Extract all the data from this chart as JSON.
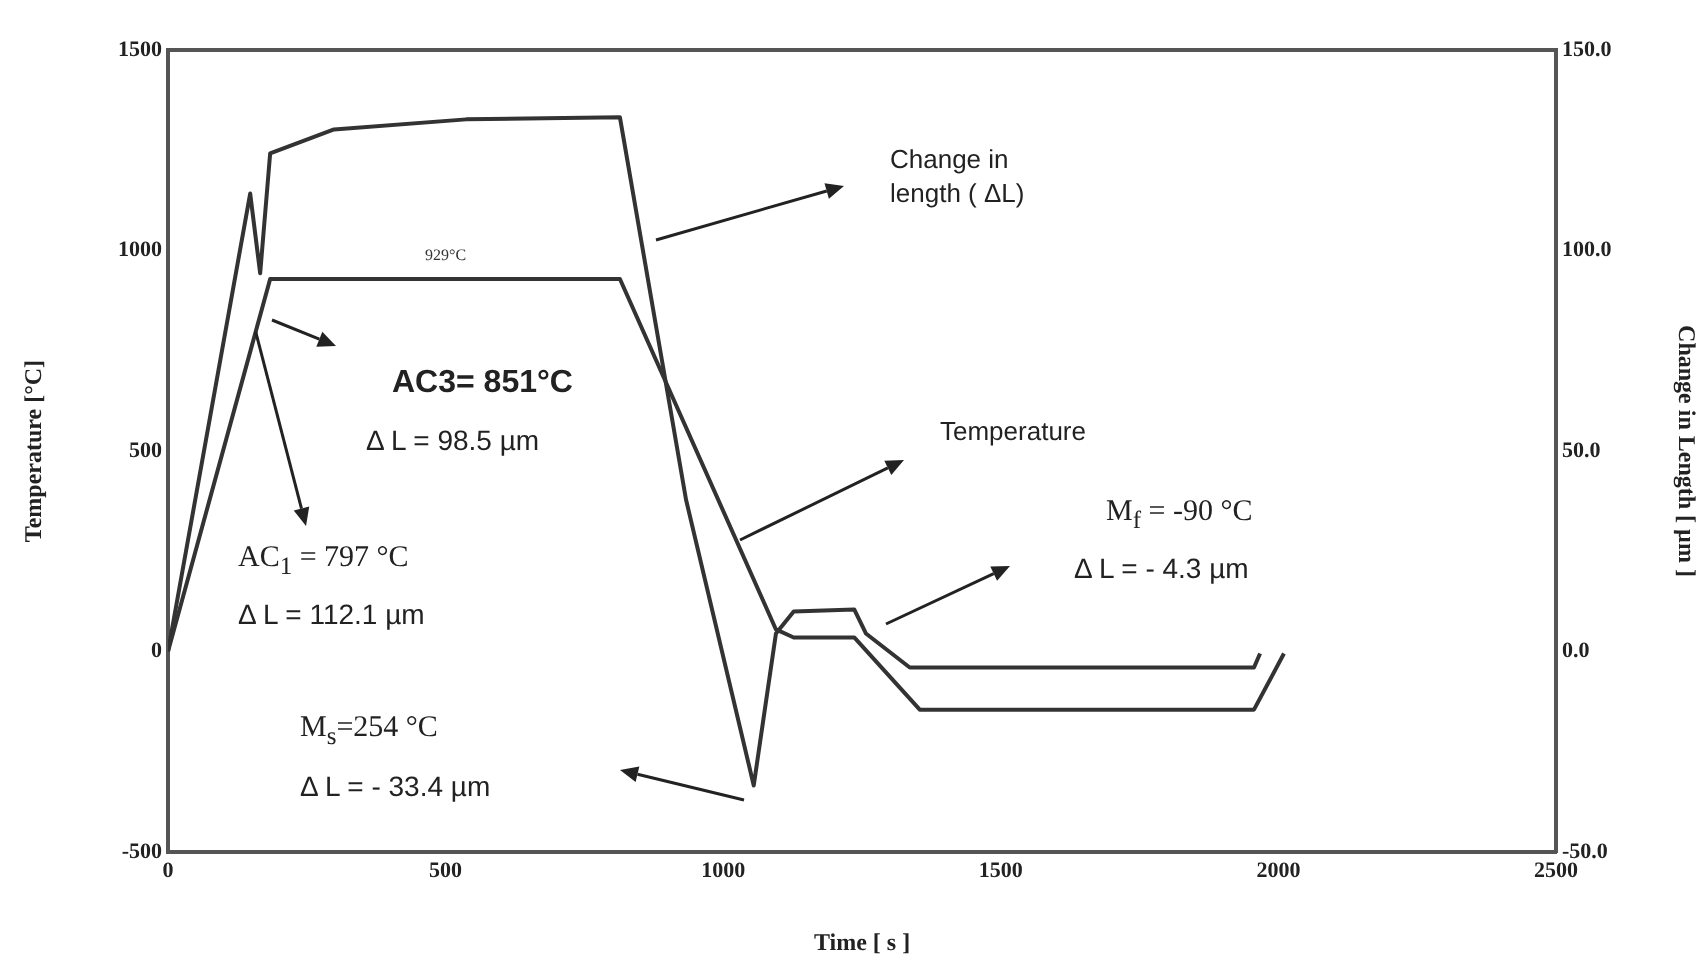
{
  "chart_data": {
    "type": "line",
    "xlabel": "Time [ s ]",
    "ylabel": "Temperature [°C]",
    "y2label": "Change in Length [ µm ]",
    "xlim": [
      0,
      2500
    ],
    "xticks": [
      0,
      500,
      1000,
      1500,
      2000,
      2500
    ],
    "ylim": [
      -500,
      1500
    ],
    "yticks": [
      -500,
      0,
      500,
      1000,
      1500
    ],
    "y2lim": [
      -50,
      150
    ],
    "y2ticks": [
      {
        "value": -50,
        "label": "-50.0"
      },
      {
        "value": 0,
        "label": "0.0"
      },
      {
        "value": 50,
        "label": "50.0"
      },
      {
        "value": 100,
        "label": "100.0"
      },
      {
        "value": 150,
        "label": "150.0"
      }
    ],
    "grid": false,
    "legend": false,
    "marker": "none",
    "line_style": "solid",
    "series": [
      {
        "color": "#333333",
        "x": [
          0,
          184,
          814,
          1095,
          1127,
          1236,
          1354,
          1956,
          2010
        ],
        "values": [
          0,
          929,
          929,
          55,
          35,
          35,
          -145,
          -145,
          -5
        ]
      },
      {
        "color": "#333333",
        "axis": "y2",
        "x": [
          0,
          148,
          166,
          184,
          299,
          537,
          814,
          933,
          1055,
          1095,
          1127,
          1236,
          1257,
          1336,
          1956,
          1967
        ],
        "values": [
          0,
          114.2,
          94.3,
          124.2,
          130.2,
          132.7,
          133.2,
          37.9,
          -33.4,
          4.5,
          10,
          10.5,
          4.5,
          -4,
          -4,
          -0.5
        ]
      }
    ],
    "annotations": [
      {
        "text": "929°C",
        "x": 500,
        "y": 929
      },
      "Change in length ( ΔL)",
      "Temperature",
      "AC3= 851°C",
      "Δ L = 98.5 µm",
      {
        "text": "AC$_{1}$ = 797 °C",
        "x": 158,
        "y": 797
      },
      "Δ L = 112.1 µm",
      "M$_{s}$=254 °C",
      "Δ L = - 33.4 µm",
      "M$_{f}$ = -90 °C",
      "Δ L = - 4.3 µm"
    ]
  }
}
